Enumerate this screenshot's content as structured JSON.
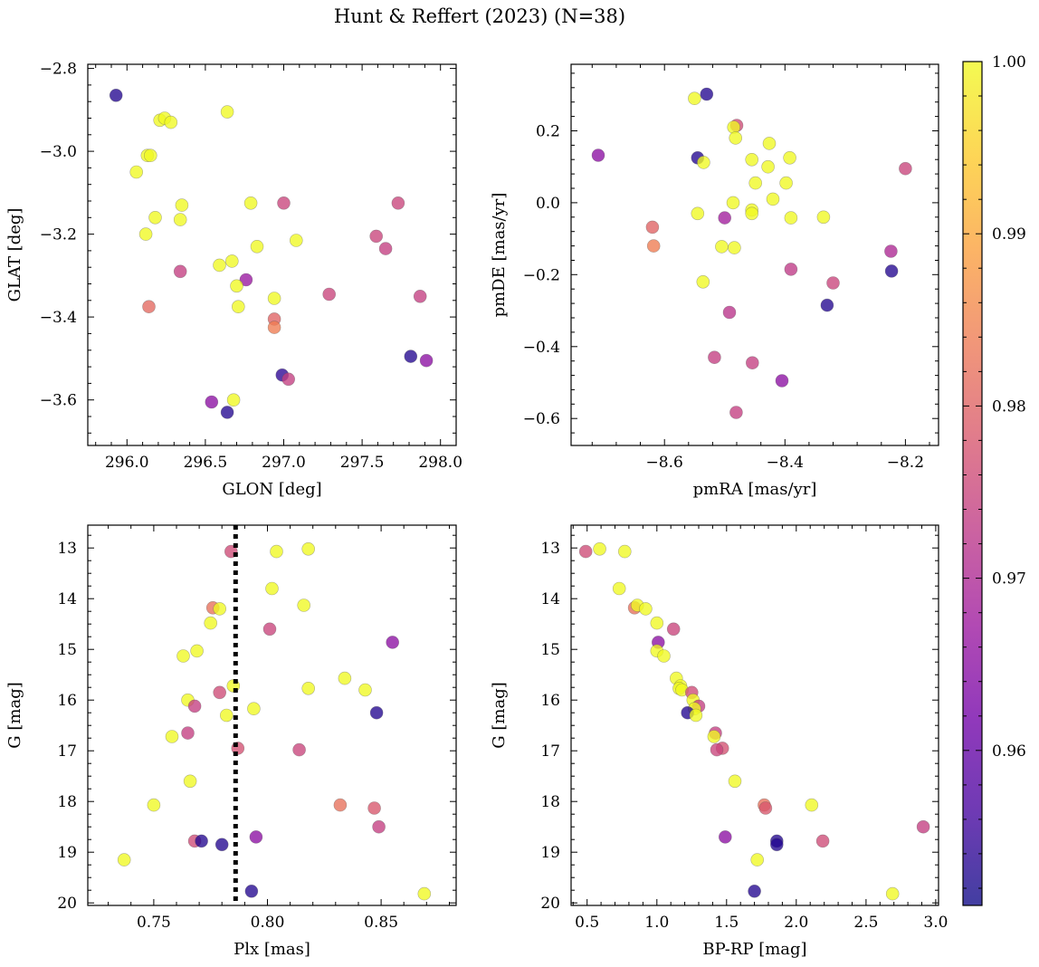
{
  "figure": {
    "title": "Hunt & Reffert (2023) (N=38)",
    "colorbar": {
      "min": 0.951,
      "max": 1.0,
      "ticks": [
        0.96,
        0.97,
        0.98,
        0.99,
        1.0
      ],
      "tick_labels": [
        "0.96",
        "0.97",
        "0.98",
        "0.99",
        "1.00"
      ],
      "colormap": "plasma",
      "colormap_stops": [
        "#0d0887",
        "#46039f",
        "#7201a8",
        "#9c179e",
        "#bd3786",
        "#d8576b",
        "#ed7953",
        "#fb9f3a",
        "#fdca26",
        "#f0f921"
      ]
    },
    "marker_alpha": 0.78,
    "marker_edge": "#555555",
    "vline_color": "#000000"
  },
  "chart_data": [
    {
      "type": "scatter",
      "xlabel": "GLON [deg]",
      "ylabel": "GLAT [deg]",
      "xlim": [
        295.75,
        298.1
      ],
      "ylim": [
        -3.71,
        -2.79
      ],
      "xticks": [
        296.0,
        296.5,
        297.0,
        297.5,
        298.0
      ],
      "xtick_labels": [
        "296.0",
        "296.5",
        "297.0",
        "297.5",
        "298.0"
      ],
      "yticks": [
        -3.6,
        -3.4,
        -3.2,
        -3.0,
        -2.8
      ],
      "ytick_labels": [
        "−3.6",
        "−3.4",
        "−3.2",
        "−3.0",
        "−2.8"
      ],
      "points": [
        {
          "x": 295.93,
          "y": -2.865,
          "c": 0.953
        },
        {
          "x": 296.21,
          "y": -2.925,
          "c": 1.0
        },
        {
          "x": 296.24,
          "y": -2.92,
          "c": 1.0
        },
        {
          "x": 296.28,
          "y": -2.93,
          "c": 1.0
        },
        {
          "x": 296.64,
          "y": -2.905,
          "c": 1.0
        },
        {
          "x": 296.13,
          "y": -3.01,
          "c": 1.0
        },
        {
          "x": 296.15,
          "y": -3.01,
          "c": 1.0
        },
        {
          "x": 296.06,
          "y": -3.05,
          "c": 1.0
        },
        {
          "x": 296.35,
          "y": -3.13,
          "c": 1.0
        },
        {
          "x": 296.79,
          "y": -3.125,
          "c": 1.0
        },
        {
          "x": 297.0,
          "y": -3.125,
          "c": 0.975
        },
        {
          "x": 297.73,
          "y": -3.125,
          "c": 0.975
        },
        {
          "x": 296.18,
          "y": -3.16,
          "c": 1.0
        },
        {
          "x": 296.34,
          "y": -3.165,
          "c": 1.0
        },
        {
          "x": 296.12,
          "y": -3.2,
          "c": 1.0
        },
        {
          "x": 297.08,
          "y": -3.215,
          "c": 1.0
        },
        {
          "x": 297.59,
          "y": -3.205,
          "c": 0.975
        },
        {
          "x": 297.65,
          "y": -3.235,
          "c": 0.974
        },
        {
          "x": 296.83,
          "y": -3.23,
          "c": 1.0
        },
        {
          "x": 296.59,
          "y": -3.275,
          "c": 1.0
        },
        {
          "x": 296.67,
          "y": -3.265,
          "c": 1.0
        },
        {
          "x": 296.34,
          "y": -3.29,
          "c": 0.974
        },
        {
          "x": 296.76,
          "y": -3.31,
          "c": 0.967
        },
        {
          "x": 296.7,
          "y": -3.325,
          "c": 1.0
        },
        {
          "x": 296.94,
          "y": -3.355,
          "c": 1.0
        },
        {
          "x": 297.29,
          "y": -3.345,
          "c": 0.975
        },
        {
          "x": 297.87,
          "y": -3.35,
          "c": 0.974
        },
        {
          "x": 296.14,
          "y": -3.375,
          "c": 0.981
        },
        {
          "x": 296.71,
          "y": -3.375,
          "c": 1.0
        },
        {
          "x": 296.94,
          "y": -3.405,
          "c": 0.98
        },
        {
          "x": 296.94,
          "y": -3.425,
          "c": 0.984
        },
        {
          "x": 297.81,
          "y": -3.495,
          "c": 0.953
        },
        {
          "x": 297.91,
          "y": -3.505,
          "c": 0.965
        },
        {
          "x": 296.99,
          "y": -3.54,
          "c": 0.954
        },
        {
          "x": 297.03,
          "y": -3.55,
          "c": 0.974
        },
        {
          "x": 296.54,
          "y": -3.605,
          "c": 0.965
        },
        {
          "x": 296.68,
          "y": -3.6,
          "c": 1.0
        },
        {
          "x": 296.64,
          "y": -3.63,
          "c": 0.953
        }
      ]
    },
    {
      "type": "scatter",
      "xlabel": "pmRA [mas/yr]",
      "ylabel": "pmDE [mas/yr]",
      "xlim": [
        -8.755,
        -8.145
      ],
      "ylim": [
        -0.675,
        0.385
      ],
      "xticks": [
        -8.6,
        -8.4,
        -8.2
      ],
      "xtick_labels": [
        "−8.6",
        "−8.4",
        "−8.2"
      ],
      "yticks": [
        -0.6,
        -0.4,
        -0.2,
        0.0,
        0.2
      ],
      "ytick_labels": [
        "−0.6",
        "−0.4",
        "−0.2",
        "0.0",
        "0.2"
      ],
      "points": [
        {
          "x": -8.53,
          "y": 0.302,
          "c": 0.953
        },
        {
          "x": -8.55,
          "y": 0.29,
          "c": 1.0
        },
        {
          "x": -8.48,
          "y": 0.215,
          "c": 0.976
        },
        {
          "x": -8.485,
          "y": 0.21,
          "c": 1.0
        },
        {
          "x": -8.482,
          "y": 0.18,
          "c": 1.0
        },
        {
          "x": -8.426,
          "y": 0.165,
          "c": 1.0
        },
        {
          "x": -8.71,
          "y": 0.132,
          "c": 0.965
        },
        {
          "x": -8.545,
          "y": 0.125,
          "c": 0.953
        },
        {
          "x": -8.535,
          "y": 0.112,
          "c": 1.0
        },
        {
          "x": -8.455,
          "y": 0.12,
          "c": 1.0
        },
        {
          "x": -8.392,
          "y": 0.125,
          "c": 1.0
        },
        {
          "x": -8.428,
          "y": 0.1,
          "c": 1.0
        },
        {
          "x": -8.2,
          "y": 0.095,
          "c": 0.975
        },
        {
          "x": -8.449,
          "y": 0.055,
          "c": 1.0
        },
        {
          "x": -8.398,
          "y": 0.055,
          "c": 1.0
        },
        {
          "x": -8.42,
          "y": 0.01,
          "c": 1.0
        },
        {
          "x": -8.486,
          "y": 0.0,
          "c": 1.0
        },
        {
          "x": -8.455,
          "y": -0.02,
          "c": 1.0
        },
        {
          "x": -8.455,
          "y": -0.03,
          "c": 1.0
        },
        {
          "x": -8.545,
          "y": -0.03,
          "c": 1.0
        },
        {
          "x": -8.5,
          "y": -0.042,
          "c": 0.968
        },
        {
          "x": -8.39,
          "y": -0.042,
          "c": 1.0
        },
        {
          "x": -8.336,
          "y": -0.04,
          "c": 1.0
        },
        {
          "x": -8.62,
          "y": -0.068,
          "c": 0.98
        },
        {
          "x": -8.618,
          "y": -0.12,
          "c": 0.984
        },
        {
          "x": -8.505,
          "y": -0.122,
          "c": 1.0
        },
        {
          "x": -8.484,
          "y": -0.125,
          "c": 1.0
        },
        {
          "x": -8.224,
          "y": -0.135,
          "c": 0.97
        },
        {
          "x": -8.39,
          "y": -0.185,
          "c": 0.973
        },
        {
          "x": -8.223,
          "y": -0.19,
          "c": 0.953
        },
        {
          "x": -8.536,
          "y": -0.22,
          "c": 1.0
        },
        {
          "x": -8.32,
          "y": -0.223,
          "c": 0.975
        },
        {
          "x": -8.33,
          "y": -0.285,
          "c": 0.953
        },
        {
          "x": -8.492,
          "y": -0.305,
          "c": 0.972
        },
        {
          "x": -8.517,
          "y": -0.43,
          "c": 0.974
        },
        {
          "x": -8.454,
          "y": -0.445,
          "c": 0.974
        },
        {
          "x": -8.405,
          "y": -0.495,
          "c": 0.965
        },
        {
          "x": -8.481,
          "y": -0.583,
          "c": 0.974
        }
      ]
    },
    {
      "type": "scatter",
      "xlabel": "Plx [mas]",
      "ylabel": "G [mag]",
      "xlim": [
        0.721,
        0.883
      ],
      "ylim": [
        20.05,
        12.55
      ],
      "y_inverted": true,
      "xticks": [
        0.75,
        0.8,
        0.85
      ],
      "xtick_labels": [
        "0.75",
        "0.80",
        "0.85"
      ],
      "yticks": [
        13,
        14,
        15,
        16,
        17,
        18,
        19,
        20
      ],
      "ytick_labels": [
        "13",
        "14",
        "15",
        "16",
        "17",
        "18",
        "19",
        "20"
      ],
      "vline": {
        "x": 0.786,
        "style": "dotted"
      },
      "points": [
        {
          "x": 0.784,
          "y": 13.07,
          "c": 0.976
        },
        {
          "x": 0.804,
          "y": 13.07,
          "c": 1.0
        },
        {
          "x": 0.818,
          "y": 13.02,
          "c": 1.0
        },
        {
          "x": 0.802,
          "y": 13.8,
          "c": 1.0
        },
        {
          "x": 0.776,
          "y": 14.18,
          "c": 0.982
        },
        {
          "x": 0.779,
          "y": 14.2,
          "c": 1.0
        },
        {
          "x": 0.816,
          "y": 14.13,
          "c": 1.0
        },
        {
          "x": 0.775,
          "y": 14.48,
          "c": 1.0
        },
        {
          "x": 0.801,
          "y": 14.6,
          "c": 0.975
        },
        {
          "x": 0.855,
          "y": 14.86,
          "c": 0.965
        },
        {
          "x": 0.769,
          "y": 15.03,
          "c": 1.0
        },
        {
          "x": 0.763,
          "y": 15.13,
          "c": 1.0
        },
        {
          "x": 0.834,
          "y": 15.57,
          "c": 1.0
        },
        {
          "x": 0.785,
          "y": 15.72,
          "c": 1.0
        },
        {
          "x": 0.818,
          "y": 15.77,
          "c": 1.0
        },
        {
          "x": 0.843,
          "y": 15.8,
          "c": 1.0
        },
        {
          "x": 0.779,
          "y": 15.85,
          "c": 0.976
        },
        {
          "x": 0.765,
          "y": 16.0,
          "c": 1.0
        },
        {
          "x": 0.768,
          "y": 16.12,
          "c": 0.974
        },
        {
          "x": 0.794,
          "y": 16.17,
          "c": 1.0
        },
        {
          "x": 0.848,
          "y": 16.25,
          "c": 0.953
        },
        {
          "x": 0.782,
          "y": 16.3,
          "c": 1.0
        },
        {
          "x": 0.765,
          "y": 16.65,
          "c": 0.974
        },
        {
          "x": 0.758,
          "y": 16.72,
          "c": 1.0
        },
        {
          "x": 0.787,
          "y": 16.95,
          "c": 0.977
        },
        {
          "x": 0.814,
          "y": 16.98,
          "c": 0.975
        },
        {
          "x": 0.766,
          "y": 17.6,
          "c": 1.0
        },
        {
          "x": 0.75,
          "y": 18.07,
          "c": 1.0
        },
        {
          "x": 0.832,
          "y": 18.07,
          "c": 0.982
        },
        {
          "x": 0.847,
          "y": 18.13,
          "c": 0.978
        },
        {
          "x": 0.849,
          "y": 18.5,
          "c": 0.974
        },
        {
          "x": 0.795,
          "y": 18.7,
          "c": 0.965
        },
        {
          "x": 0.768,
          "y": 18.78,
          "c": 0.976
        },
        {
          "x": 0.771,
          "y": 18.78,
          "c": 0.953
        },
        {
          "x": 0.78,
          "y": 18.85,
          "c": 0.953
        },
        {
          "x": 0.737,
          "y": 19.15,
          "c": 1.0
        },
        {
          "x": 0.793,
          "y": 19.77,
          "c": 0.953
        },
        {
          "x": 0.869,
          "y": 19.82,
          "c": 1.0
        }
      ]
    },
    {
      "type": "scatter",
      "xlabel": "BP-RP [mag]",
      "ylabel": "G [mag]",
      "xlim": [
        0.385,
        3.02
      ],
      "ylim": [
        20.05,
        12.55
      ],
      "y_inverted": true,
      "xticks": [
        0.5,
        1.0,
        1.5,
        2.0,
        2.5,
        3.0
      ],
      "xtick_labels": [
        "0.5",
        "1.0",
        "1.5",
        "2.0",
        "2.5",
        "3.0"
      ],
      "yticks": [
        13,
        14,
        15,
        16,
        17,
        18,
        19,
        20
      ],
      "ytick_labels": [
        "13",
        "14",
        "15",
        "16",
        "17",
        "18",
        "19",
        "20"
      ],
      "points": [
        {
          "x": 0.49,
          "y": 13.07,
          "c": 0.976
        },
        {
          "x": 0.59,
          "y": 13.02,
          "c": 1.0
        },
        {
          "x": 0.77,
          "y": 13.07,
          "c": 1.0
        },
        {
          "x": 0.73,
          "y": 13.8,
          "c": 1.0
        },
        {
          "x": 0.84,
          "y": 14.18,
          "c": 0.982
        },
        {
          "x": 0.86,
          "y": 14.13,
          "c": 1.0
        },
        {
          "x": 0.92,
          "y": 14.2,
          "c": 1.0
        },
        {
          "x": 1.0,
          "y": 14.48,
          "c": 1.0
        },
        {
          "x": 1.12,
          "y": 14.6,
          "c": 0.975
        },
        {
          "x": 1.01,
          "y": 14.86,
          "c": 0.965
        },
        {
          "x": 1.0,
          "y": 15.03,
          "c": 1.0
        },
        {
          "x": 1.05,
          "y": 15.13,
          "c": 1.0
        },
        {
          "x": 1.14,
          "y": 15.57,
          "c": 1.0
        },
        {
          "x": 1.17,
          "y": 15.72,
          "c": 1.0
        },
        {
          "x": 1.16,
          "y": 15.77,
          "c": 1.0
        },
        {
          "x": 1.18,
          "y": 15.8,
          "c": 1.0
        },
        {
          "x": 1.25,
          "y": 15.85,
          "c": 0.976
        },
        {
          "x": 1.26,
          "y": 16.0,
          "c": 1.0
        },
        {
          "x": 1.3,
          "y": 16.12,
          "c": 0.974
        },
        {
          "x": 1.27,
          "y": 16.17,
          "c": 1.0
        },
        {
          "x": 1.22,
          "y": 16.25,
          "c": 0.953
        },
        {
          "x": 1.28,
          "y": 16.3,
          "c": 1.0
        },
        {
          "x": 1.42,
          "y": 16.65,
          "c": 0.974
        },
        {
          "x": 1.41,
          "y": 16.72,
          "c": 1.0
        },
        {
          "x": 1.47,
          "y": 16.95,
          "c": 0.977
        },
        {
          "x": 1.43,
          "y": 16.98,
          "c": 0.975
        },
        {
          "x": 1.56,
          "y": 17.6,
          "c": 1.0
        },
        {
          "x": 2.11,
          "y": 18.07,
          "c": 1.0
        },
        {
          "x": 1.77,
          "y": 18.07,
          "c": 0.982
        },
        {
          "x": 1.78,
          "y": 18.13,
          "c": 0.978
        },
        {
          "x": 2.91,
          "y": 18.5,
          "c": 0.974
        },
        {
          "x": 1.49,
          "y": 18.7,
          "c": 0.965
        },
        {
          "x": 2.19,
          "y": 18.78,
          "c": 0.976
        },
        {
          "x": 1.86,
          "y": 18.78,
          "c": 0.953
        },
        {
          "x": 1.86,
          "y": 18.85,
          "c": 0.953
        },
        {
          "x": 1.72,
          "y": 19.15,
          "c": 1.0
        },
        {
          "x": 1.7,
          "y": 19.77,
          "c": 0.953
        },
        {
          "x": 2.69,
          "y": 19.82,
          "c": 1.0
        }
      ]
    }
  ]
}
